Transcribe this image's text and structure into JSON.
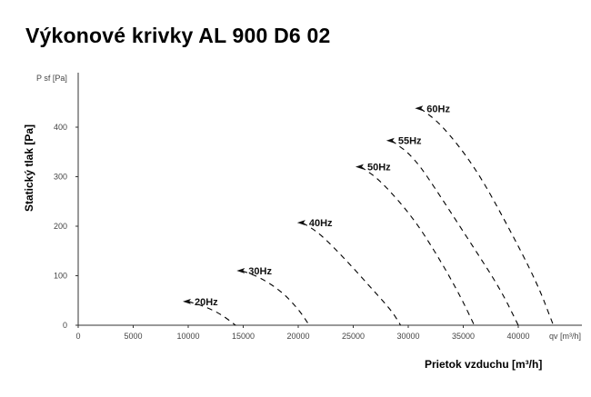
{
  "chart_data": {
    "type": "line",
    "title": "Výkonové krivky AL 900 D6 02",
    "xlabel": "Prietok vzduchu [m³/h]",
    "ylabel": "Statický tlak [Pa]",
    "x_unit": "qv [m³/h]",
    "y_unit": "P sf [Pa]",
    "xlim": [
      0,
      46000
    ],
    "ylim": [
      0,
      510
    ],
    "x_ticks": [
      0,
      5000,
      10000,
      15000,
      20000,
      25000,
      30000,
      35000,
      40000
    ],
    "y_ticks": [
      0,
      100,
      200,
      300,
      400
    ],
    "grid": false,
    "series": [
      {
        "name": "20Hz",
        "x": [
          10000,
          11500,
          13000,
          14300
        ],
        "y": [
          48,
          38,
          22,
          0
        ]
      },
      {
        "name": "30Hz",
        "x": [
          14900,
          16500,
          18500,
          20000,
          21000
        ],
        "y": [
          110,
          97,
          68,
          33,
          0
        ]
      },
      {
        "name": "40Hz",
        "x": [
          20400,
          22000,
          24500,
          27000,
          28500,
          29300
        ],
        "y": [
          207,
          185,
          128,
          66,
          29,
          0
        ]
      },
      {
        "name": "50Hz",
        "x": [
          25700,
          27500,
          30500,
          33000,
          34800,
          36000
        ],
        "y": [
          320,
          292,
          216,
          128,
          56,
          0
        ]
      },
      {
        "name": "55Hz",
        "x": [
          28500,
          30500,
          33000,
          36000,
          38400,
          40000
        ],
        "y": [
          373,
          340,
          258,
          155,
          72,
          0
        ]
      },
      {
        "name": "60Hz",
        "x": [
          31100,
          33000,
          36000,
          39000,
          41700,
          43200
        ],
        "y": [
          438,
          406,
          322,
          203,
          86,
          0
        ]
      }
    ]
  }
}
